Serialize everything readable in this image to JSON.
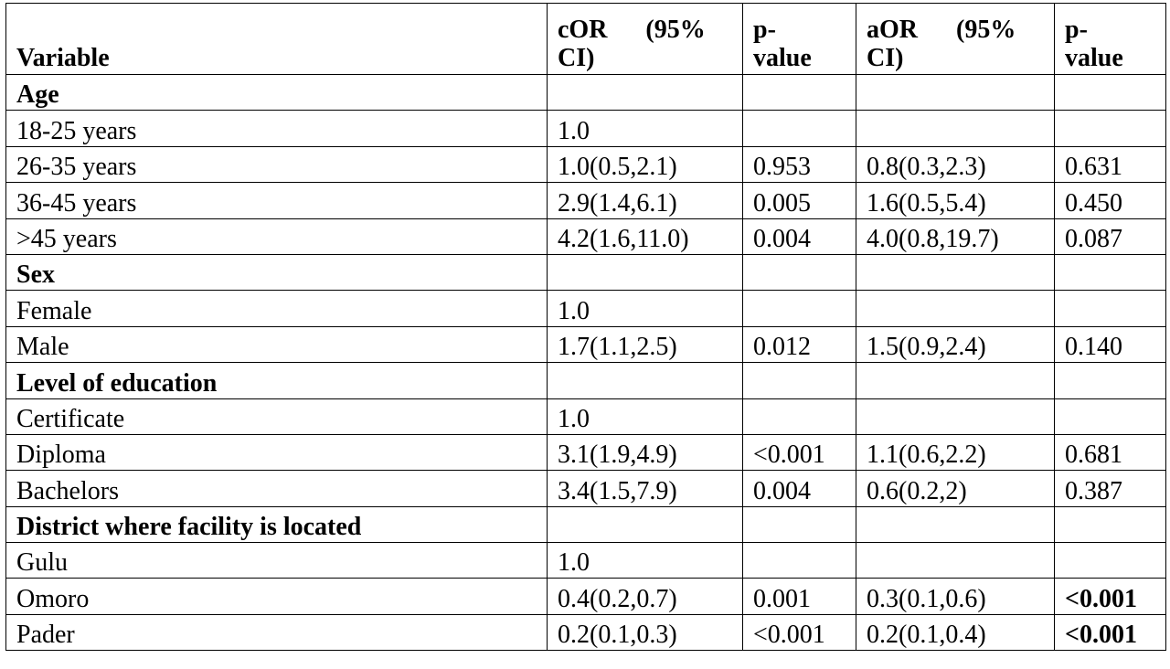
{
  "headers": {
    "variable": "Variable",
    "cor_line1": "cOR      (95%",
    "cor_line2": "CI)",
    "p1_line1": "p-",
    "p1_line2": "value",
    "aor_line1": "aOR      (95%",
    "aor_line2": "CI)",
    "p2_line1": "p-",
    "p2_line2": "value"
  },
  "rows": [
    {
      "label": "Age",
      "section": true,
      "cor": "",
      "p1": "",
      "aor": "",
      "p2": ""
    },
    {
      "label": "18-25 years",
      "section": false,
      "cor": "1.0",
      "p1": "",
      "aor": "",
      "p2": ""
    },
    {
      "label": "26-35 years",
      "section": false,
      "cor": "1.0(0.5,2.1)",
      "p1": "0.953",
      "aor": "0.8(0.3,2.3)",
      "p2": "0.631"
    },
    {
      "label": "36-45 years",
      "section": false,
      "cor": "2.9(1.4,6.1)",
      "p1": "0.005",
      "aor": "1.6(0.5,5.4)",
      "p2": "0.450"
    },
    {
      "label": ">45 years",
      "section": false,
      "cor": "4.2(1.6,11.0)",
      "p1": "0.004",
      "aor": "4.0(0.8,19.7)",
      "p2": "0.087"
    },
    {
      "label": "Sex",
      "section": true,
      "cor": "",
      "p1": "",
      "aor": "",
      "p2": ""
    },
    {
      "label": "Female",
      "section": false,
      "cor": "1.0",
      "p1": "",
      "aor": "",
      "p2": ""
    },
    {
      "label": "Male",
      "section": false,
      "cor": "1.7(1.1,2.5)",
      "p1": "0.012",
      "aor": "1.5(0.9,2.4)",
      "p2": "0.140"
    },
    {
      "label": "Level of education",
      "section": true,
      "cor": "",
      "p1": "",
      "aor": "",
      "p2": ""
    },
    {
      "label": "Certificate",
      "section": false,
      "cor": "1.0",
      "p1": "",
      "aor": "",
      "p2": ""
    },
    {
      "label": "Diploma",
      "section": false,
      "cor": "3.1(1.9,4.9)",
      "p1": "<0.001",
      "aor": "1.1(0.6,2.2)",
      "p2": "0.681"
    },
    {
      "label": "Bachelors",
      "section": false,
      "cor": "3.4(1.5,7.9)",
      "p1": "0.004",
      "aor": "0.6(0.2,2)",
      "p2": "0.387"
    },
    {
      "label": "District where facility is located",
      "section": true,
      "cor": "",
      "p1": "",
      "aor": "",
      "p2": ""
    },
    {
      "label": "Gulu",
      "section": false,
      "cor": "1.0",
      "p1": "",
      "aor": "",
      "p2": ""
    },
    {
      "label": "Omoro",
      "section": false,
      "cor": "0.4(0.2,0.7)",
      "p1": "0.001",
      "aor": "0.3(0.1,0.6)",
      "p2": "<0.001",
      "p2_bold": true
    },
    {
      "label": "Pader",
      "section": false,
      "cor": "0.2(0.1,0.3)",
      "p1": "<0.001",
      "aor": "0.2(0.1,0.4)",
      "p2": "<0.001",
      "p2_bold": true
    }
  ]
}
